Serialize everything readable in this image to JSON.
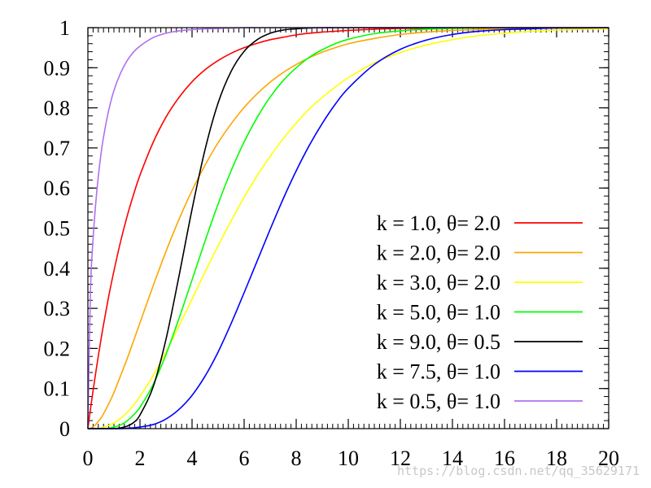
{
  "chart_data": {
    "type": "line",
    "title": "",
    "xlabel": "",
    "ylabel": "",
    "xlim": [
      0,
      20
    ],
    "ylim": [
      0,
      1
    ],
    "x_ticks": [
      "0",
      "2",
      "4",
      "6",
      "8",
      "10",
      "12",
      "14",
      "16",
      "18",
      "20"
    ],
    "y_ticks": [
      "0",
      "0.1",
      "0.2",
      "0.3",
      "0.4",
      "0.5",
      "0.6",
      "0.7",
      "0.8",
      "0.9",
      "1"
    ],
    "x_tick_values": [
      0,
      2,
      4,
      6,
      8,
      10,
      12,
      14,
      16,
      18,
      20
    ],
    "y_tick_values": [
      0,
      0.1,
      0.2,
      0.3,
      0.4,
      0.5,
      0.6,
      0.7,
      0.8,
      0.9,
      1
    ],
    "x": [
      0,
      0.1,
      0.2,
      0.3,
      0.4,
      0.5,
      0.6,
      0.8,
      1,
      1.25,
      1.5,
      1.75,
      2,
      2.5,
      3,
      3.5,
      4,
      4.5,
      5,
      5.5,
      6,
      6.5,
      7,
      7.5,
      8,
      8.5,
      9,
      9.5,
      10,
      11,
      12,
      13,
      14,
      15,
      16,
      17,
      18,
      19,
      20
    ],
    "legend_position": "bottom-right",
    "grid": false,
    "series": [
      {
        "name": "k = 1.0, θ= 2.0",
        "color": "#ff0000",
        "values": [
          0,
          0.049,
          0.095,
          0.139,
          0.181,
          0.221,
          0.259,
          0.33,
          0.393,
          0.465,
          0.528,
          0.583,
          0.632,
          0.713,
          0.777,
          0.826,
          0.865,
          0.895,
          0.918,
          0.936,
          0.95,
          0.961,
          0.97,
          0.976,
          0.982,
          0.986,
          0.989,
          0.991,
          0.993,
          0.996,
          0.998,
          0.998,
          0.999,
          0.999,
          1.0,
          1.0,
          1.0,
          1.0,
          1.0
        ]
      },
      {
        "name": "k = 2.0, θ= 2.0",
        "color": "#ffa500",
        "values": [
          0,
          0.001,
          0.005,
          0.01,
          0.018,
          0.026,
          0.037,
          0.062,
          0.09,
          0.131,
          0.173,
          0.218,
          0.264,
          0.355,
          0.442,
          0.522,
          0.594,
          0.657,
          0.713,
          0.76,
          0.801,
          0.835,
          0.864,
          0.888,
          0.908,
          0.925,
          0.939,
          0.95,
          0.96,
          0.973,
          0.983,
          0.989,
          0.993,
          0.995,
          0.997,
          0.998,
          0.999,
          0.999,
          1.0
        ]
      },
      {
        "name": "k = 3.0, θ= 2.0",
        "color": "#ffff00",
        "values": [
          0,
          0,
          0,
          0,
          0,
          0.002,
          0.004,
          0.008,
          0.014,
          0.025,
          0.04,
          0.058,
          0.08,
          0.132,
          0.191,
          0.256,
          0.323,
          0.391,
          0.456,
          0.518,
          0.577,
          0.631,
          0.679,
          0.723,
          0.762,
          0.797,
          0.826,
          0.852,
          0.875,
          0.912,
          0.938,
          0.957,
          0.97,
          0.98,
          0.986,
          0.991,
          0.994,
          0.996,
          0.997
        ]
      },
      {
        "name": "k = 5.0, θ= 1.0",
        "color": "#00ff00",
        "values": [
          0,
          0,
          0,
          0,
          0,
          0,
          0,
          0.001,
          0.004,
          0.009,
          0.019,
          0.034,
          0.053,
          0.109,
          0.185,
          0.275,
          0.371,
          0.468,
          0.56,
          0.643,
          0.715,
          0.776,
          0.827,
          0.868,
          0.9,
          0.926,
          0.945,
          0.96,
          0.971,
          0.985,
          0.992,
          0.996,
          0.998,
          0.999,
          1.0,
          1.0,
          1.0,
          1.0,
          1.0
        ]
      },
      {
        "name": "k = 9.0, θ= 0.5",
        "color": "#000000",
        "values": [
          0,
          0,
          0,
          0,
          0,
          0,
          0,
          0,
          0,
          0.002,
          0.006,
          0.015,
          0.034,
          0.103,
          0.223,
          0.381,
          0.547,
          0.696,
          0.812,
          0.891,
          0.941,
          0.97,
          0.986,
          0.994,
          0.997,
          0.999,
          1.0,
          1.0,
          1.0,
          1.0,
          1.0,
          1.0,
          1.0,
          1.0,
          1.0,
          1.0,
          1.0,
          1.0,
          1.0
        ]
      },
      {
        "name": "k = 7.5, θ= 1.0",
        "color": "#0000ff",
        "values": [
          0,
          0,
          0,
          0,
          0,
          0,
          0,
          0,
          0,
          0,
          0.001,
          0.002,
          0.004,
          0.01,
          0.024,
          0.048,
          0.083,
          0.131,
          0.191,
          0.262,
          0.339,
          0.418,
          0.497,
          0.573,
          0.643,
          0.706,
          0.761,
          0.809,
          0.849,
          0.908,
          0.946,
          0.969,
          0.983,
          0.991,
          0.995,
          0.997,
          0.999,
          0.999,
          1.0
        ]
      },
      {
        "name": "k = 0.5, θ= 1.0",
        "color": "#b070f0",
        "values": [
          0,
          0.345,
          0.473,
          0.561,
          0.629,
          0.683,
          0.727,
          0.794,
          0.843,
          0.886,
          0.917,
          0.939,
          0.954,
          0.975,
          0.986,
          0.992,
          0.995,
          0.997,
          0.998,
          0.999,
          1.0,
          1.0,
          1.0,
          1.0,
          1.0,
          1.0,
          1.0,
          1.0,
          1.0,
          1.0,
          1.0,
          1.0,
          1.0,
          1.0,
          1.0,
          1.0,
          1.0,
          1.0,
          1.0
        ]
      }
    ]
  },
  "watermark": "https://blog.csdn.net/qq_35629171"
}
